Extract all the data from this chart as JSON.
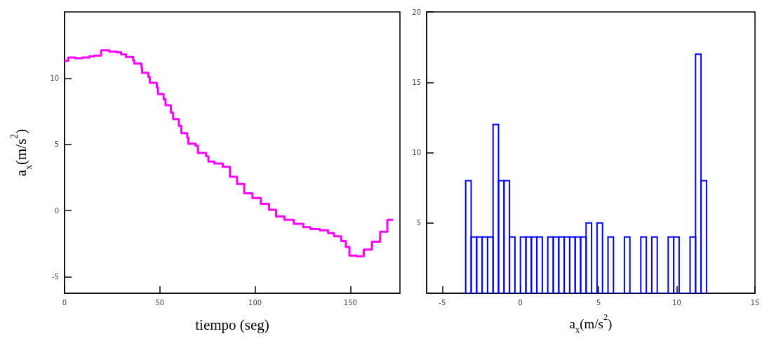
{
  "chart_data": [
    {
      "type": "step",
      "xlabel": "tiempo (seg)",
      "ylabel": "a$_{x}$(m/s$^{2}$)",
      "xlim": [
        0,
        176
      ],
      "ylim": [
        -6.25,
        15
      ],
      "xticks": [
        0,
        50,
        100,
        150
      ],
      "yticks": [
        -5,
        0,
        5,
        10
      ],
      "grid": false,
      "series": [
        {
          "color": "#ff00ff",
          "x": [
            0,
            1.9,
            5.6,
            9.3,
            13,
            15.5,
            19.2,
            23.5,
            27.2,
            29.7,
            32.2,
            36,
            36.6,
            40.4,
            40.7,
            44,
            44.7,
            48.4,
            49,
            52,
            53,
            55.8,
            57,
            60,
            61.3,
            64.4,
            65,
            68.7,
            70,
            74.3,
            75.5,
            78.6,
            83,
            86.8,
            90.5,
            94.3,
            98.6,
            103,
            107.3,
            111,
            115.4,
            120.3,
            125.3,
            129,
            134,
            138.3,
            141.4,
            145.2,
            147.6,
            149.5,
            153.2,
            157,
            161.3,
            165.6,
            169.4,
            172.5
          ],
          "values": [
            11.3,
            11.55,
            11.5,
            11.55,
            11.65,
            11.7,
            12.1,
            12,
            11.95,
            11.8,
            11.6,
            11.35,
            11.1,
            10.8,
            10.4,
            10.1,
            9.65,
            9.3,
            8.8,
            8.4,
            7.95,
            7.4,
            6.9,
            6.4,
            5.85,
            5.5,
            5.05,
            4.9,
            4.35,
            4.1,
            3.7,
            3.55,
            3.3,
            2.55,
            2,
            1.3,
            0.95,
            0.5,
            0.05,
            -0.45,
            -0.7,
            -1,
            -1.25,
            -1.4,
            -1.5,
            -1.7,
            -1.95,
            -2.3,
            -2.75,
            -3.4,
            -3.45,
            -2.95,
            -2.35,
            -1.6,
            -0.7,
            -0.7
          ]
        }
      ]
    },
    {
      "type": "histogram",
      "xlabel": "a$_{x}$(m/s$^{2}$)",
      "xlim": [
        -6,
        15
      ],
      "ylim": [
        0,
        20
      ],
      "xticks": [
        -5,
        0,
        5,
        10,
        15
      ],
      "yticks": [
        5,
        10,
        15,
        20
      ],
      "grid": false,
      "color": "#0000ff",
      "bins": [
        -3.5,
        -3.15,
        -2.8,
        -2.45,
        -2.1,
        -1.75,
        -1.4,
        -1.05,
        -0.7,
        -0.35,
        0,
        0.35,
        0.7,
        1.05,
        1.4,
        1.75,
        2.1,
        2.45,
        2.8,
        3.15,
        3.5,
        3.85,
        4.2,
        4.55,
        4.9,
        5.25,
        5.6,
        5.95,
        6.3,
        6.65,
        7,
        7.35,
        7.7,
        8.05,
        8.4,
        8.75,
        9.1,
        9.45,
        9.8,
        10.15,
        10.5,
        10.85,
        11.2,
        11.55,
        11.9
      ],
      "values": [
        8,
        4,
        4,
        4,
        4,
        12,
        8,
        8,
        4,
        0,
        4,
        4,
        4,
        4,
        0,
        4,
        4,
        4,
        4,
        4,
        4,
        4,
        5,
        0,
        5,
        0,
        4,
        0,
        0,
        4,
        0,
        0,
        4,
        0,
        4,
        0,
        0,
        4,
        4,
        0,
        0,
        4,
        17,
        8
      ]
    }
  ]
}
